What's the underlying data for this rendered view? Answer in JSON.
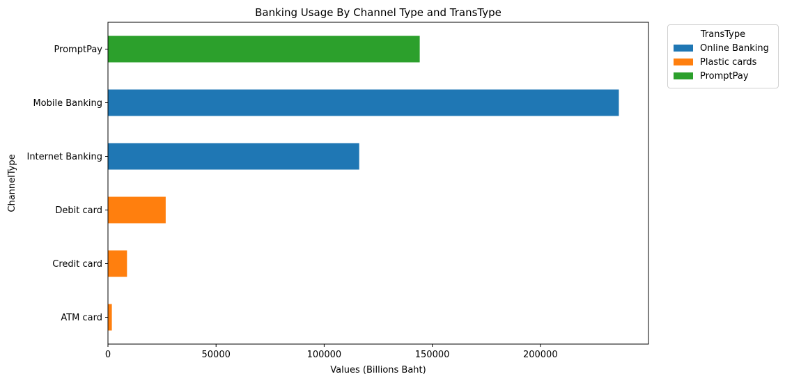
{
  "chart_data": {
    "type": "bar",
    "orientation": "horizontal",
    "title": "Banking Usage By Channel Type and TransType",
    "xlabel": "Values (Billions Baht)",
    "ylabel": "ChannelType",
    "xlim": [
      0,
      250000
    ],
    "xticks": [
      0,
      50000,
      100000,
      150000,
      200000
    ],
    "grid": false,
    "categories": [
      "ATM card",
      "Credit card",
      "Debit card",
      "Internet Banking",
      "Mobile Banking",
      "PromptPay"
    ],
    "bars": [
      {
        "category": "ATM card",
        "series": "Plastic cards",
        "value": 1800
      },
      {
        "category": "Credit card",
        "series": "Plastic cards",
        "value": 8800
      },
      {
        "category": "Debit card",
        "series": "Plastic cards",
        "value": 26700
      },
      {
        "category": "Internet Banking",
        "series": "Online Banking",
        "value": 116200
      },
      {
        "category": "Mobile Banking",
        "series": "Online Banking",
        "value": 236300
      },
      {
        "category": "PromptPay",
        "series": "PromptPay",
        "value": 144200
      }
    ],
    "legend": {
      "title": "TransType",
      "placement": "outside-top-right",
      "entries": [
        {
          "name": "Online Banking",
          "color": "#1f77b4"
        },
        {
          "name": "Plastic cards",
          "color": "#ff7f0e"
        },
        {
          "name": "PromptPay",
          "color": "#2ca02c"
        }
      ]
    }
  }
}
